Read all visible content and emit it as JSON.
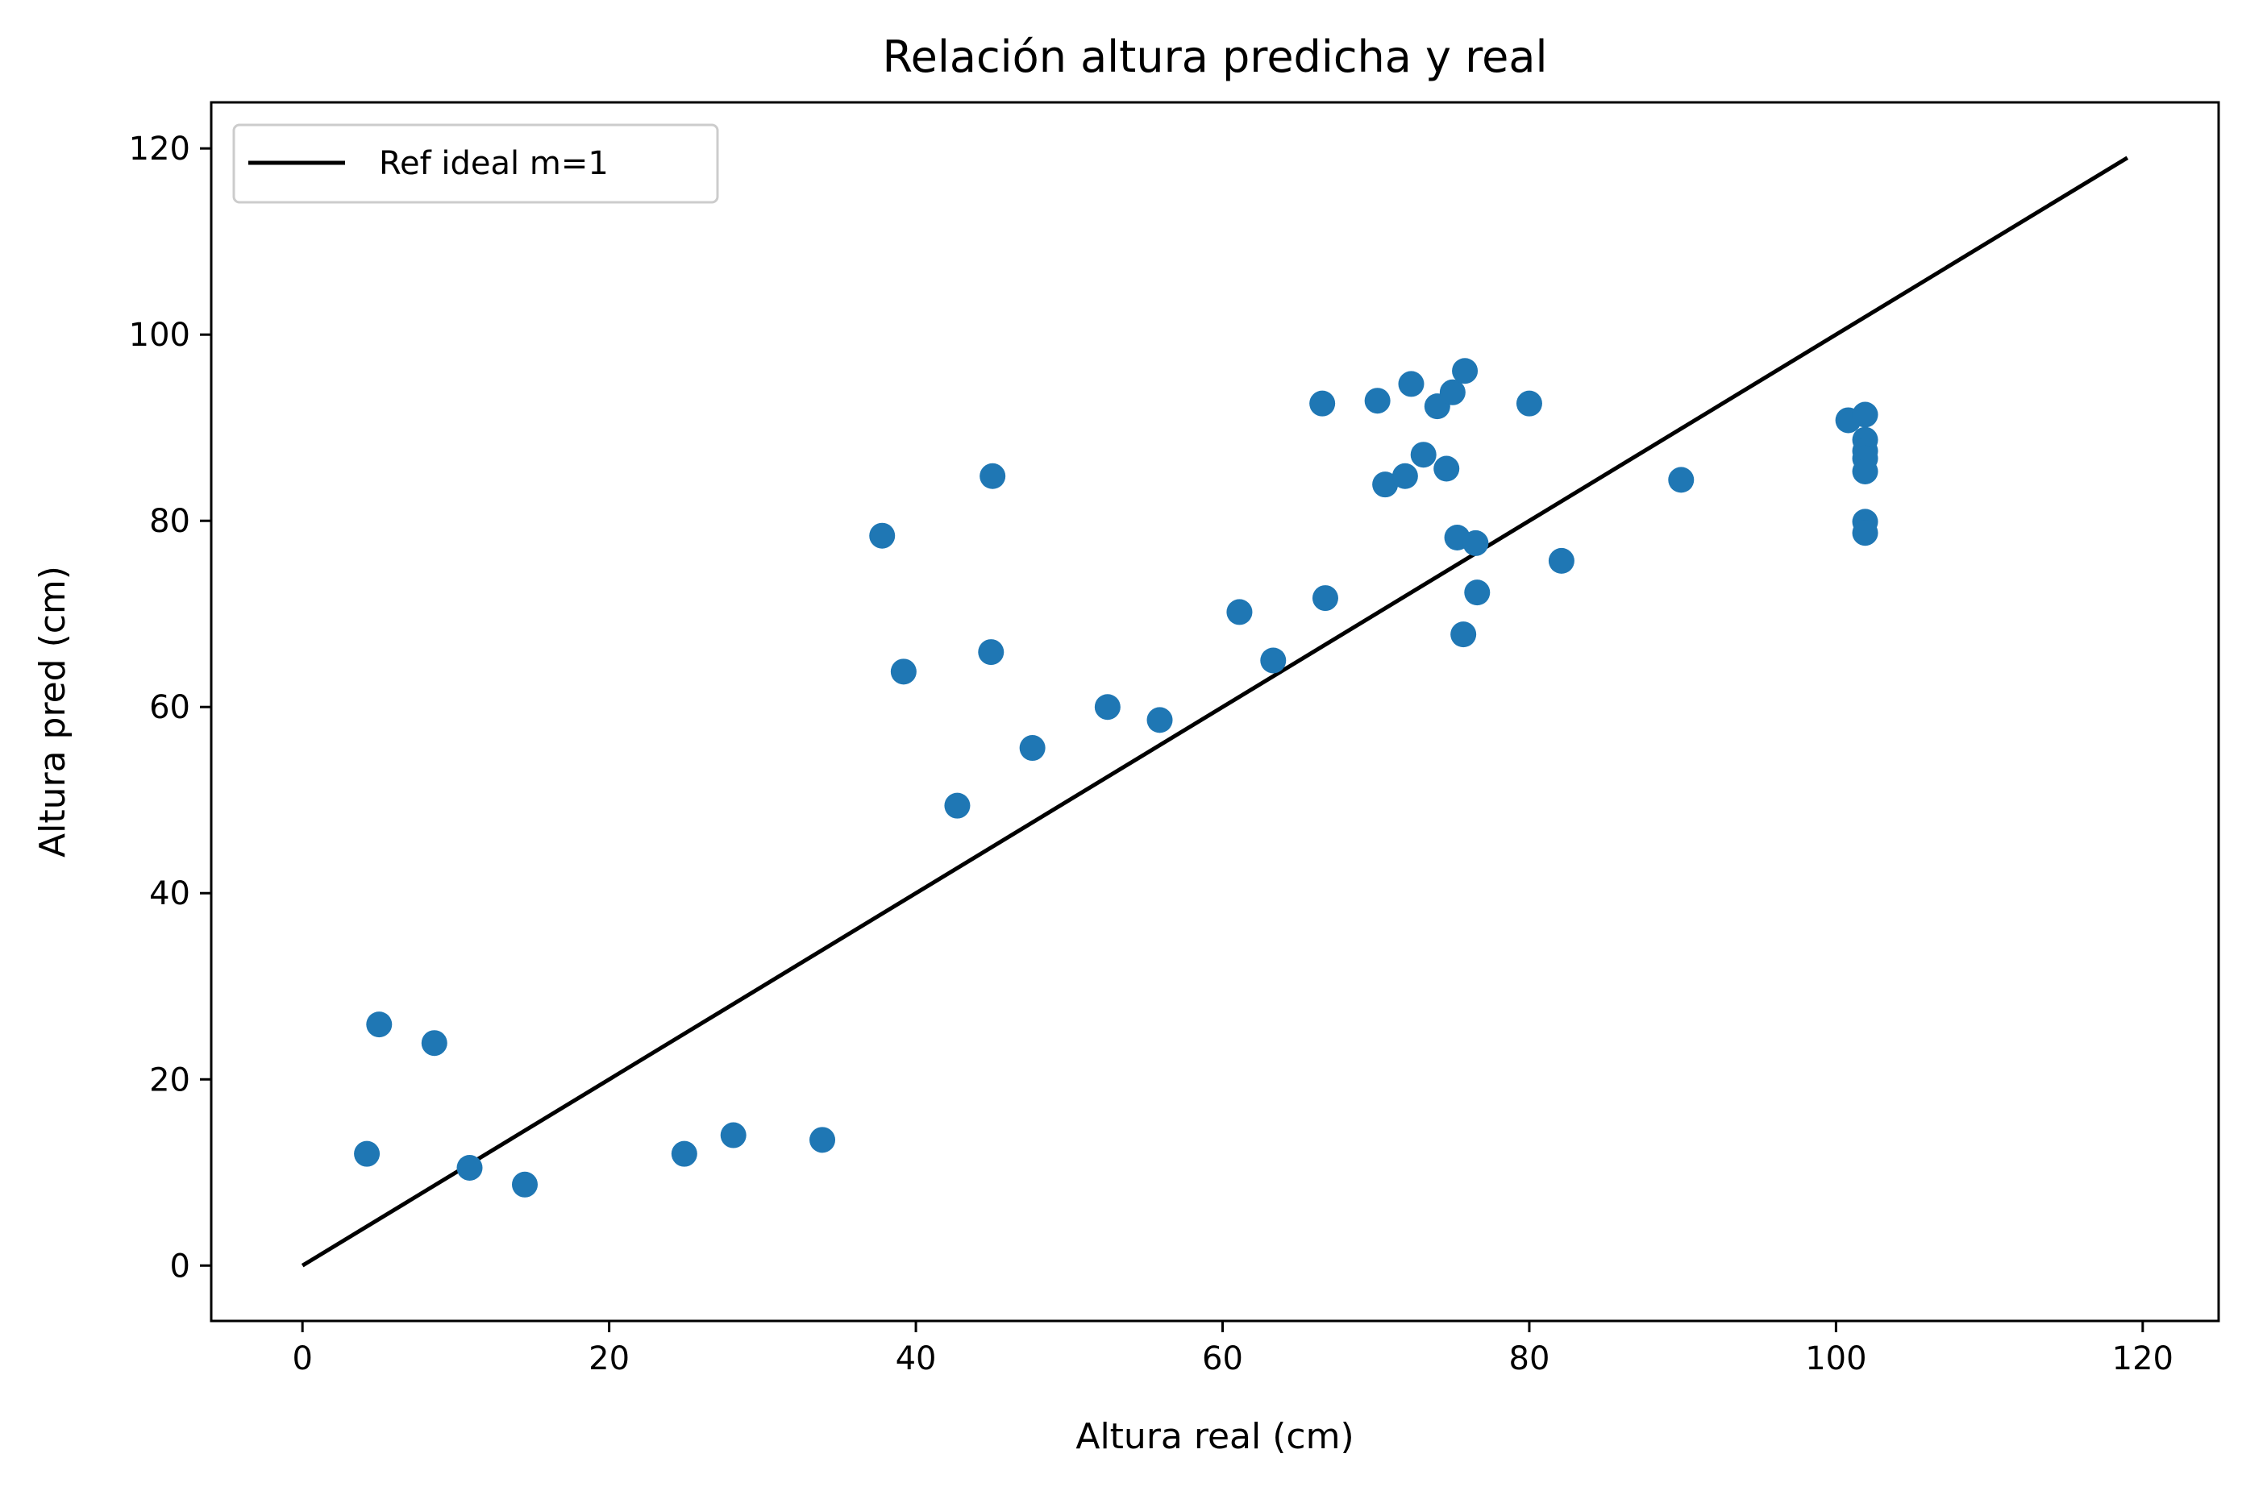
{
  "chart_data": {
    "type": "scatter",
    "title": "Relación altura predicha y real",
    "xlabel": "Altura real (cm)",
    "ylabel": "Altura pred (cm)",
    "xlim": [
      -5.95,
      124.95
    ],
    "ylim": [
      -5.95,
      124.95
    ],
    "x_ticks": [
      "0",
      "20",
      "40",
      "60",
      "80",
      "100",
      "120"
    ],
    "y_ticks": [
      "0",
      "20",
      "40",
      "60",
      "80",
      "100",
      "120"
    ],
    "grid": false,
    "legend_position": "top-left",
    "reference_line": {
      "name": "Ref ideal m=1",
      "x": [
        0,
        119
      ],
      "y": [
        0,
        119
      ],
      "color": "#000000"
    },
    "series": [
      {
        "color": "#1f77b4",
        "x": [
          4.2,
          5.0,
          8.6,
          10.9,
          14.5,
          24.9,
          28.1,
          33.9,
          37.8,
          39.2,
          42.7,
          45.0,
          44.9,
          47.6,
          52.5,
          55.9,
          61.1,
          63.3,
          66.5,
          66.7,
          70.1,
          70.6,
          71.9,
          72.3,
          73.1,
          74.0,
          74.6,
          75.0,
          75.3,
          75.8,
          75.7,
          76.5,
          76.6,
          80.0,
          82.1,
          89.9,
          100.8,
          101.9,
          101.9,
          101.9,
          101.9,
          101.9,
          101.9,
          101.9
        ],
        "y": [
          12.0,
          25.9,
          23.9,
          10.5,
          8.7,
          12.0,
          14.0,
          13.5,
          78.4,
          63.8,
          49.4,
          84.8,
          65.9,
          55.6,
          60.0,
          58.6,
          70.2,
          65.0,
          92.6,
          71.7,
          92.9,
          83.9,
          84.8,
          94.7,
          87.1,
          92.3,
          85.6,
          93.8,
          78.2,
          96.1,
          67.8,
          77.6,
          72.3,
          92.6,
          75.7,
          84.4,
          90.8,
          91.4,
          88.7,
          87.5,
          86.7,
          85.3,
          79.9,
          78.7
        ]
      }
    ]
  }
}
